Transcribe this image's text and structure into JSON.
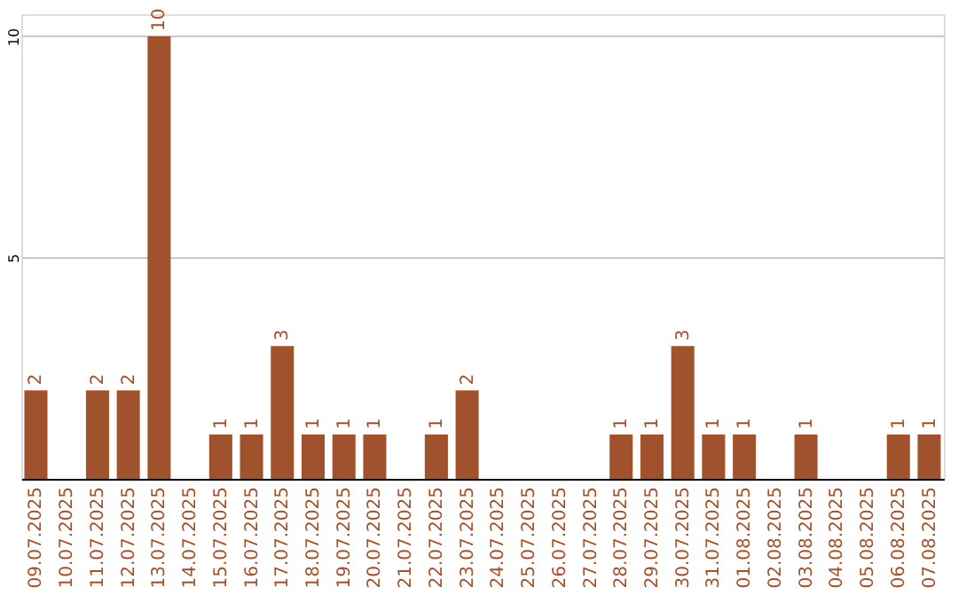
{
  "chart_data": {
    "type": "bar",
    "categories": [
      "09.07.2025",
      "10.07.2025",
      "11.07.2025",
      "12.07.2025",
      "13.07.2025",
      "14.07.2025",
      "15.07.2025",
      "16.07.2025",
      "17.07.2025",
      "18.07.2025",
      "19.07.2025",
      "20.07.2025",
      "21.07.2025",
      "22.07.2025",
      "23.07.2025",
      "24.07.2025",
      "25.07.2025",
      "26.07.2025",
      "27.07.2025",
      "28.07.2025",
      "29.07.2025",
      "30.07.2025",
      "31.07.2025",
      "01.08.2025",
      "02.08.2025",
      "03.08.2025",
      "04.08.2025",
      "05.08.2025",
      "06.08.2025",
      "07.08.2025"
    ],
    "values": [
      2,
      0,
      2,
      2,
      10,
      0,
      1,
      1,
      3,
      1,
      1,
      1,
      0,
      1,
      2,
      0,
      0,
      0,
      0,
      1,
      1,
      3,
      1,
      1,
      0,
      1,
      0,
      0,
      1,
      1
    ],
    "value_labels": [
      "2",
      null,
      "2",
      "2",
      "10",
      null,
      "1",
      "1",
      "3",
      "1",
      "1",
      "1",
      null,
      "1",
      "2",
      null,
      null,
      null,
      null,
      "1",
      "1",
      "3",
      "1",
      "1",
      null,
      "1",
      null,
      null,
      "1",
      "1"
    ],
    "color": "#a0522d",
    "ylim": [
      0,
      10.5
    ],
    "yticks": [
      5,
      10
    ],
    "grid": "y"
  }
}
